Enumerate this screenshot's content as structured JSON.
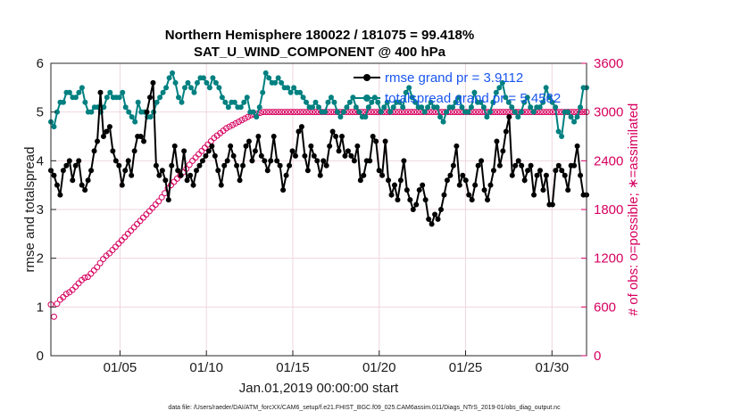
{
  "chart_data": {
    "type": "line",
    "title": "Northern Hemisphere 180022 / 181075 = 99.418%",
    "subtitle": "SAT_U_WIND_COMPONENT @ 400 hPa",
    "xlabel": "Jan.01,2019 00:00:00 start",
    "ylabel": "rmse and totalspread",
    "ylabel_right": "# of obs: o=possible; ∗=assimilated",
    "x_ticks": [
      "01/05",
      "01/10",
      "01/15",
      "01/20",
      "01/25",
      "01/30"
    ],
    "y_ticks": [
      "0",
      "1",
      "2",
      "3",
      "4",
      "5",
      "6"
    ],
    "y2_ticks": [
      "0",
      "600",
      "1200",
      "1800",
      "2400",
      "3000",
      "3600"
    ],
    "ylim": [
      0,
      6
    ],
    "y2lim": [
      0,
      3600
    ],
    "xlim": [
      1,
      32
    ],
    "footnote": "data file: /Users/raeder/DAI/ATM_forcXX/CAM6_setup/f.e21.FHIST_BGC.f09_025.CAM6assim.011/Diags_NTrS_2019-01/obs_diag_output.nc",
    "colors": {
      "rmse": "#000000",
      "spread": "#008080",
      "obs": "#d6005f",
      "legend_text": "#1a56f0"
    },
    "series": [
      {
        "name": "rmse grand pr = 3.9112",
        "color": "#000000",
        "values": [
          3.8,
          3.7,
          3.5,
          3.3,
          3.8,
          3.9,
          4.0,
          3.6,
          3.9,
          4.0,
          3.5,
          3.4,
          3.6,
          3.8,
          4.2,
          4.4,
          5.4,
          4.5,
          4.6,
          4.7,
          4.2,
          4.0,
          3.9,
          3.5,
          3.8,
          4.0,
          3.7,
          4.2,
          4.5,
          4.5,
          4.4,
          5.0,
          5.3,
          5.6,
          3.9,
          3.7,
          3.8,
          3.6,
          3.2,
          3.9,
          4.3,
          3.8,
          3.7,
          4.2,
          3.6,
          3.7,
          3.5,
          3.8,
          3.9,
          4.0,
          4.1,
          4.2,
          4.3,
          4.1,
          3.8,
          3.5,
          3.9,
          4.0,
          4.3,
          4.1,
          3.9,
          3.6,
          3.9,
          4.3,
          4.4,
          4.0,
          4.2,
          4.5,
          4.1,
          4.0,
          3.8,
          4.0,
          4.5,
          4.0,
          3.9,
          3.4,
          3.7,
          3.9,
          4.2,
          4.1,
          4.6,
          4.7,
          4.1,
          3.8,
          4.3,
          4.1,
          4.0,
          3.7,
          4.0,
          3.9,
          4.3,
          4.6,
          4.5,
          4.2,
          4.5,
          4.1,
          4.2,
          4.1,
          4.0,
          4.3,
          3.6,
          3.7,
          4.0,
          4.0,
          4.5,
          4.4,
          3.8,
          3.7,
          4.4,
          3.6,
          3.3,
          3.5,
          3.2,
          3.6,
          4.0,
          3.4,
          3.2,
          3.0,
          3.1,
          3.4,
          3.5,
          3.2,
          2.8,
          2.7,
          2.9,
          2.8,
          3.0,
          3.3,
          3.6,
          3.7,
          3.9,
          4.3,
          3.5,
          3.7,
          3.6,
          3.3,
          3.2,
          3.5,
          3.9,
          4.0,
          3.4,
          3.2,
          3.5,
          3.8,
          4.4,
          3.9,
          4.2,
          4.6,
          4.9,
          3.7,
          3.9,
          4.0,
          3.9,
          3.6,
          3.8,
          3.9,
          3.3,
          3.7,
          3.8,
          3.4,
          3.7,
          3.1,
          3.1,
          3.8,
          3.9,
          3.8,
          3.7,
          3.4,
          3.9,
          3.9,
          4.3,
          3.7,
          3.3,
          3.3
        ]
      },
      {
        "name": "totalspread grand pr = 5.4582",
        "color": "#008080",
        "values": [
          4.8,
          4.7,
          5.0,
          5.2,
          5.2,
          5.4,
          5.4,
          5.3,
          5.3,
          5.4,
          5.5,
          5.2,
          5.0,
          5.0,
          5.1,
          5.1,
          5.0,
          5.1,
          5.3,
          5.4,
          5.3,
          5.3,
          5.3,
          5.4,
          5.1,
          5.0,
          4.9,
          4.8,
          5.2,
          5.0,
          5.0,
          4.9,
          4.9,
          5.0,
          5.2,
          5.3,
          5.4,
          5.5,
          5.7,
          5.8,
          5.6,
          5.3,
          5.2,
          5.5,
          5.6,
          5.5,
          5.4,
          5.6,
          5.7,
          5.7,
          5.6,
          5.5,
          5.7,
          5.6,
          5.5,
          5.3,
          5.2,
          5.1,
          5.2,
          5.2,
          5.1,
          5.1,
          5.2,
          5.3,
          5.0,
          5.0,
          4.9,
          5.1,
          5.4,
          5.8,
          5.7,
          5.6,
          5.6,
          5.7,
          5.6,
          5.5,
          5.5,
          5.4,
          5.5,
          5.4,
          5.4,
          5.3,
          5.2,
          5.1,
          5.1,
          5.2,
          5.1,
          5.0,
          5.0,
          5.2,
          5.3,
          5.2,
          5.0,
          4.9,
          5.0,
          5.1,
          5.2,
          5.3,
          5.1,
          5.0,
          4.9,
          4.9,
          5.1,
          5.2,
          5.3,
          5.2,
          5.0,
          5.1,
          5.2,
          5.0,
          5.1,
          5.2,
          5.2,
          5.1,
          5.4,
          5.5,
          5.3,
          5.2,
          5.1,
          5.1,
          5.0,
          5.1,
          5.2,
          5.1,
          5.1,
          4.9,
          4.8,
          5.0,
          5.1,
          5.1,
          5.2,
          5.3,
          5.1,
          5.0,
          5.0,
          5.1,
          5.4,
          5.2,
          5.2,
          5.1,
          4.9,
          5.0,
          5.2,
          5.4,
          5.5,
          5.6,
          5.3,
          5.2,
          5.1,
          5.0,
          4.9,
          5.0,
          5.2,
          5.3,
          5.1,
          5.0,
          5.1,
          5.1,
          5.2,
          5.5,
          5.3,
          5.2,
          5.1,
          4.6,
          4.5,
          5.0,
          5.0,
          4.9,
          4.8,
          4.9,
          5.1,
          5.5,
          5.5
        ]
      },
      {
        "name": "# of obs assimilated",
        "color": "#d6005f",
        "axis": "right",
        "values": [
          630,
          480,
          640,
          690,
          720,
          760,
          780,
          810,
          850,
          890,
          930,
          960,
          970,
          1010,
          1050,
          1090,
          1140,
          1190,
          1230,
          1260,
          1300,
          1340,
          1380,
          1420,
          1460,
          1500,
          1540,
          1580,
          1620,
          1660,
          1700,
          1740,
          1780,
          1820,
          1860,
          1900,
          1950,
          2000,
          2060,
          2100,
          2140,
          2180,
          2220,
          2260,
          2300,
          2350,
          2400,
          2440,
          2480,
          2520,
          2560,
          2600,
          2640,
          2680,
          2710,
          2740,
          2770,
          2800,
          2820,
          2840,
          2860,
          2880,
          2900,
          2920,
          2940,
          2960,
          2970,
          2980,
          2990,
          3000,
          3000,
          3000,
          3000,
          3000,
          3000,
          3000,
          3000,
          3000,
          3000,
          3000,
          3000,
          3000,
          3000,
          3000,
          3000,
          3000,
          3000,
          3000,
          3000,
          3000,
          3000,
          3000,
          3000,
          3000,
          3000,
          3000,
          3000,
          3000,
          3000,
          3000,
          3000,
          3000,
          3000,
          3000,
          3000,
          3000,
          3000,
          3000,
          3000,
          3000,
          3000,
          3000,
          3000,
          3000,
          3000,
          3000,
          3000,
          3000,
          3000,
          3000,
          3000,
          3000,
          3000,
          3000,
          3000,
          3000,
          3000,
          3000,
          3000,
          3000,
          3000,
          3000,
          3000,
          3000,
          3000,
          3000,
          3000,
          3000,
          3000,
          3000,
          3000,
          3000,
          3000,
          3000,
          3000,
          3000,
          3000,
          3000,
          3000,
          3000,
          3000,
          3000,
          3000,
          3000,
          3000,
          3000,
          3000,
          3000,
          3000,
          3000,
          3000,
          3000,
          3000,
          3000,
          3000,
          3000,
          3000,
          3000,
          3000,
          3000,
          3000,
          3000,
          3000,
          3000,
          3000
        ]
      }
    ]
  }
}
